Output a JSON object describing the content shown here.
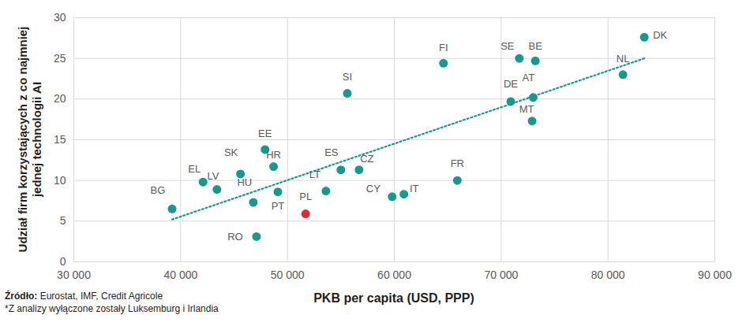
{
  "chart_data": {
    "type": "scatter",
    "xlabel": "PKB per capita (USD, PPP)",
    "ylabel": "Udział firm korzystających z co najmniej jednej technologii AI",
    "source": "Źródło: Eurostat, IMF, Credit Agricole",
    "note": "*Z analizy wyłączone zostały Luksemburg i Irlandia",
    "xlim": [
      30000,
      90000
    ],
    "xticks": [
      {
        "value": 30000,
        "label": "30 000"
      },
      {
        "value": 40000,
        "label": "40 000"
      },
      {
        "value": 50000,
        "label": "50 000"
      },
      {
        "value": 60000,
        "label": "60 000"
      },
      {
        "value": 70000,
        "label": "70 000"
      },
      {
        "value": 80000,
        "label": "80 000"
      },
      {
        "value": 90000,
        "label": "90 000"
      }
    ],
    "ylim": [
      0,
      30
    ],
    "yticks": [
      0,
      5,
      10,
      15,
      20,
      25,
      30
    ],
    "grid": true,
    "series": [
      {
        "type": "scatter",
        "marker": "circle",
        "labels": [
          "BG",
          "EL",
          "LV",
          "SK",
          "HU",
          "RO",
          "EE",
          "HR",
          "PT",
          "PL",
          "LT",
          "ES",
          "SI",
          "CZ",
          "CY",
          "IT",
          "FI",
          "FR",
          "DE",
          "SE",
          "MT",
          "AT",
          "BE",
          "NL",
          "DK"
        ],
        "x": [
          39200,
          42100,
          43400,
          45600,
          46800,
          47100,
          47900,
          48700,
          49100,
          51700,
          53600,
          55000,
          55600,
          56700,
          59800,
          60900,
          64600,
          65900,
          70900,
          71700,
          72900,
          73000,
          73200,
          81400,
          83400
        ],
        "values": [
          6.5,
          9.8,
          8.9,
          10.8,
          7.3,
          3.1,
          13.8,
          11.7,
          8.6,
          5.9,
          8.7,
          11.3,
          20.7,
          11.3,
          8.0,
          8.3,
          24.4,
          10.0,
          19.7,
          25.0,
          17.3,
          20.2,
          24.7,
          23.0,
          27.6
        ],
        "colors": [
          "#17998f",
          "#17998f",
          "#17998f",
          "#17998f",
          "#17998f",
          "#17998f",
          "#17998f",
          "#17998f",
          "#17998f",
          "#e8283a",
          "#17998f",
          "#17998f",
          "#17998f",
          "#17998f",
          "#17998f",
          "#17998f",
          "#17998f",
          "#17998f",
          "#17998f",
          "#17998f",
          "#17998f",
          "#17998f",
          "#17998f",
          "#17998f",
          "#17998f"
        ]
      },
      {
        "type": "line",
        "line_style": "dotted",
        "color": "#17998f",
        "x": [
          39200,
          83400
        ],
        "values": [
          5.2,
          25.0
        ]
      }
    ]
  }
}
